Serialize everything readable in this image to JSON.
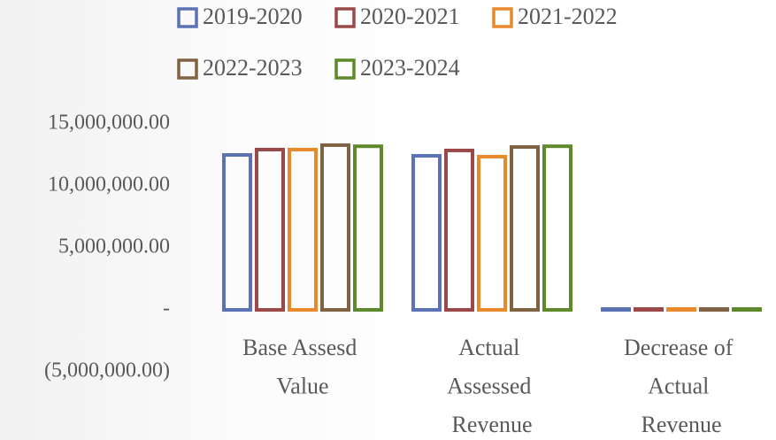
{
  "chart_data": {
    "type": "bar",
    "categories": [
      "Base Assesd Value",
      "Actual Assessed Revenue",
      "Decrease of Actual Revenue"
    ],
    "series": [
      {
        "name": "2019-2020",
        "color": "#5b72b5",
        "values": [
          12500000,
          12430000,
          70000
        ]
      },
      {
        "name": "2020-2021",
        "color": "#9b4848",
        "values": [
          12930000,
          12860000,
          70000
        ]
      },
      {
        "name": "2021-2022",
        "color": "#e8892b",
        "values": [
          12930000,
          12360000,
          70000
        ]
      },
      {
        "name": "2022-2023",
        "color": "#7f6242",
        "values": [
          13290000,
          13140000,
          70000
        ]
      },
      {
        "name": "2023-2024",
        "color": "#5f8a2c",
        "values": [
          13200000,
          13200000,
          70000
        ]
      }
    ],
    "ylim": [
      -5000000,
      15000000
    ],
    "yticks": [
      {
        "value": -5000000,
        "label": "(5,000,000.00)"
      },
      {
        "value": 0,
        "label": "-"
      },
      {
        "value": 5000000,
        "label": "5,000,000.00"
      },
      {
        "value": 10000000,
        "label": "10,000,000.00"
      },
      {
        "value": 15000000,
        "label": "15,000,000.00"
      }
    ],
    "legend": "top"
  }
}
